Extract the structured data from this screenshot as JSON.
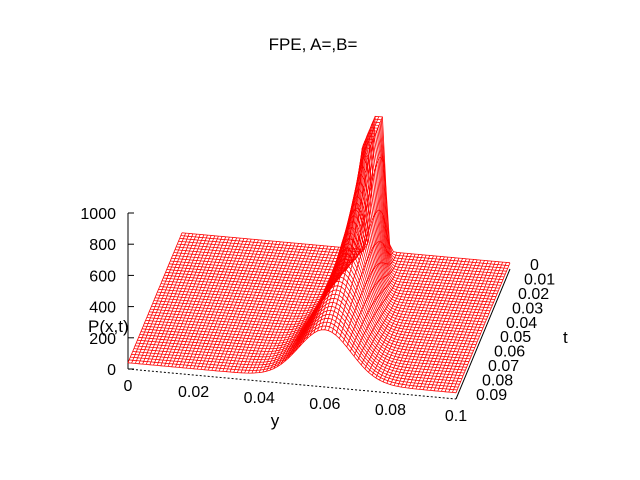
{
  "chart_data": {
    "type": "surface",
    "title": "FPE, A=,B=",
    "xlabel": "y",
    "ylabel": "t",
    "zlabel": "P(x,t)",
    "xlim": [
      0,
      0.1
    ],
    "ylim": [
      0,
      0.09
    ],
    "zlim": [
      0,
      1000
    ],
    "x_ticks": [
      "0",
      "0.02",
      "0.04",
      "0.06",
      "0.08",
      "0.1"
    ],
    "y_ticks": [
      "0",
      "0.01",
      "0.02",
      "0.03",
      "0.04",
      "0.05",
      "0.06",
      "0.07",
      "0.08",
      "0.09"
    ],
    "z_ticks": [
      "0",
      "200",
      "400",
      "600",
      "800",
      "1000"
    ],
    "peak": {
      "y": 0.06,
      "t": 0,
      "P": 900
    },
    "surface_color": "#ff0000",
    "grid": false,
    "legend": "none"
  }
}
